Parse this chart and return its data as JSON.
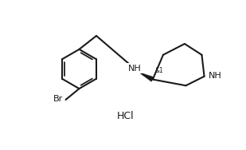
{
  "bg_color": "#ffffff",
  "line_color": "#1a1a1a",
  "line_width": 1.5,
  "font_size_label": 8,
  "font_size_hcl": 9,
  "font_size_stereo": 5.5,
  "hcl_text": "HCl",
  "br_label": "Br",
  "nh_label": "NH",
  "nh2_label": "NH",
  "stereo_label": "&1",
  "figsize": [
    3.09,
    1.88
  ],
  "dpi": 100
}
